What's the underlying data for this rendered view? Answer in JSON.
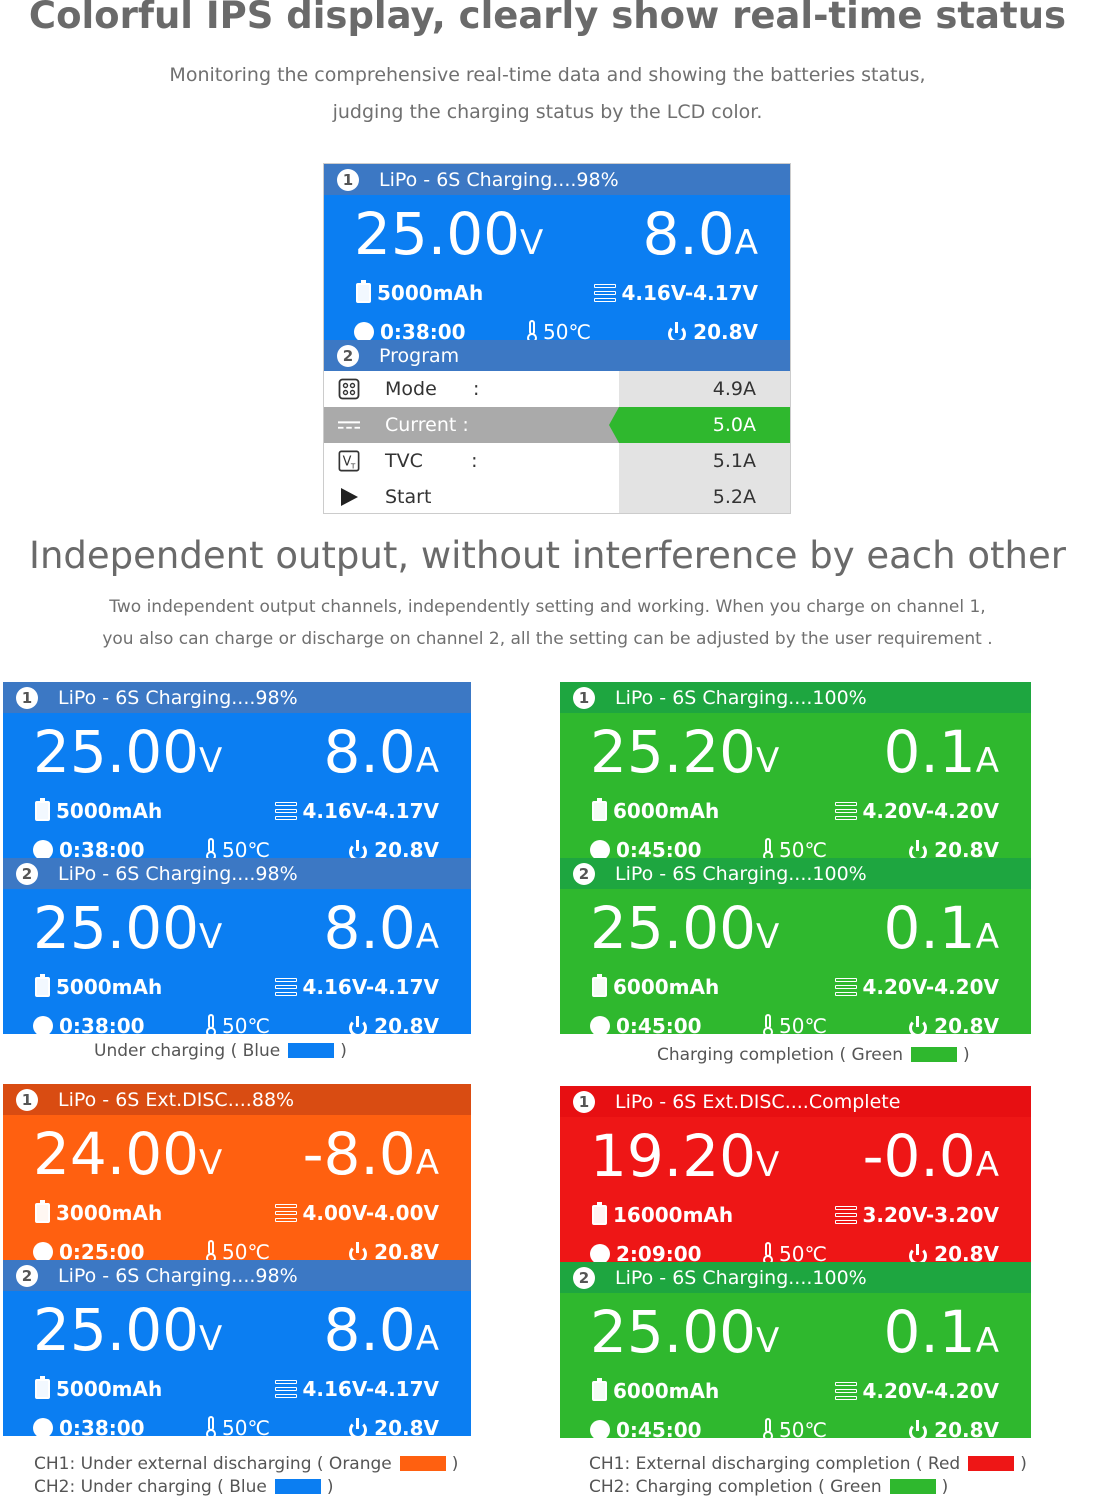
{
  "header": {
    "title": "Colorful IPS display, clearly show real-time status",
    "desc_line1": "Monitoring the comprehensive real-time data and showing the batteries status,",
    "desc_line2": "judging the charging status by the LCD color."
  },
  "main_screen": {
    "ch1": {
      "num": "1",
      "status": "LiPo - 6S Charging....98%",
      "voltage": "25.00",
      "volt_unit": "V",
      "current": "8.0",
      "amp_unit": "A",
      "capacity": "5000mAh",
      "cells": "4.16V-4.17V",
      "time": "0:38:00",
      "temp": "50℃",
      "input": "20.8V"
    },
    "program": {
      "num": "2",
      "label": "Program"
    },
    "menu": [
      {
        "icon": "mode-icon",
        "label": "Mode      :",
        "value": "4.9A"
      },
      {
        "icon": "current-icon",
        "label": "Current :",
        "value": "5.0A"
      },
      {
        "icon": "tvc-icon",
        "label": "TVC        :",
        "value": "5.1A"
      },
      {
        "icon": "start-icon",
        "label": "Start",
        "value": "5.2A"
      }
    ]
  },
  "section2": {
    "title": "Independent output, without interference by each other",
    "desc_line1": "Two independent output channels, independently setting and working. When you charge on channel 1,",
    "desc_line2": "you also can charge or discharge on channel 2, all the setting can be adjusted by the user requirement ."
  },
  "panels": {
    "p1": {
      "ch1": {
        "num": "1",
        "status": "LiPo - 6S Charging....98%",
        "voltage": "25.00",
        "volt_unit": "V",
        "current": "8.0",
        "amp_unit": "A",
        "capacity": "5000mAh",
        "cells": "4.16V-4.17V",
        "time": "0:38:00",
        "temp": "50℃",
        "input": "20.8V"
      },
      "ch2": {
        "num": "2",
        "status": "LiPo - 6S Charging....98%",
        "voltage": "25.00",
        "volt_unit": "V",
        "current": "8.0",
        "amp_unit": "A",
        "capacity": "5000mAh",
        "cells": "4.16V-4.17V",
        "time": "0:38:00",
        "temp": "50℃",
        "input": "20.8V"
      },
      "caption": "Under charging ( Blue",
      "caption_end": ")"
    },
    "p2": {
      "ch1": {
        "num": "1",
        "status": "LiPo - 6S Charging....100%",
        "voltage": "25.20",
        "volt_unit": "V",
        "current": "0.1",
        "amp_unit": "A",
        "capacity": "6000mAh",
        "cells": "4.20V-4.20V",
        "time": "0:45:00",
        "temp": "50℃",
        "input": "20.8V"
      },
      "ch2": {
        "num": "2",
        "status": "LiPo - 6S Charging....100%",
        "voltage": "25.00",
        "volt_unit": "V",
        "current": "0.1",
        "amp_unit": "A",
        "capacity": "6000mAh",
        "cells": "4.20V-4.20V",
        "time": "0:45:00",
        "temp": "50℃",
        "input": "20.8V"
      },
      "caption": "Charging completion ( Green",
      "caption_end": ")"
    },
    "p3": {
      "ch1": {
        "num": "1",
        "status": "LiPo - 6S Ext.DISC....88%",
        "voltage": "24.00",
        "volt_unit": "V",
        "current": "-8.0",
        "amp_unit": "A",
        "capacity": "3000mAh",
        "cells": "4.00V-4.00V",
        "time": "0:25:00",
        "temp": "50℃",
        "input": "20.8V"
      },
      "ch2": {
        "num": "2",
        "status": "LiPo - 6S Charging....98%",
        "voltage": "25.00",
        "volt_unit": "V",
        "current": "8.0",
        "amp_unit": "A",
        "capacity": "5000mAh",
        "cells": "4.16V-4.17V",
        "time": "0:38:00",
        "temp": "50℃",
        "input": "20.8V"
      },
      "caption1": "CH1: Under external discharging ( Orange",
      "caption2": "CH2: Under charging ( Blue",
      "caption_end": ")"
    },
    "p4": {
      "ch1": {
        "num": "1",
        "status": "LiPo - 6S Ext.DISC....Complete",
        "voltage": "19.20",
        "volt_unit": "V",
        "current": "-0.0",
        "amp_unit": "A",
        "capacity": "16000mAh",
        "cells": "3.20V-3.20V",
        "time": "2:09:00",
        "temp": "50℃",
        "input": "20.8V"
      },
      "ch2": {
        "num": "2",
        "status": "LiPo - 6S Charging....100%",
        "voltage": "25.00",
        "volt_unit": "V",
        "current": "0.1",
        "amp_unit": "A",
        "capacity": "6000mAh",
        "cells": "4.20V-4.20V",
        "time": "0:45:00",
        "temp": "50℃",
        "input": "20.8V"
      },
      "caption1": "CH1: External discharging completion ( Red",
      "caption2": "CH2: Charging completion ( Green",
      "caption_end": ")"
    }
  },
  "colors": {
    "charging_blue": "#0b7ef2",
    "complete_green": "#2fb82e",
    "discharging_orange": "#ff6010",
    "discharge_complete_red": "#ee1616"
  }
}
